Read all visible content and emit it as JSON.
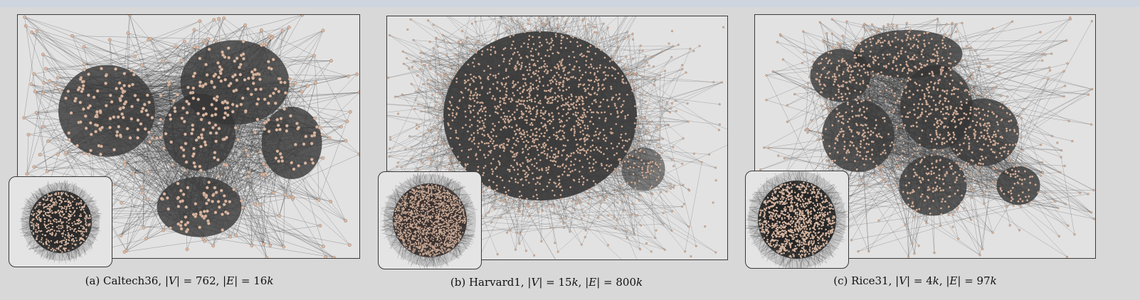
{
  "panels": [
    {
      "id": "a",
      "caption": "(a) Caltech36, |V| = 762, |E| = 16k",
      "caption_parts": {
        "prefix": "(a) Caltech36, |",
        "v": "V",
        "mid1": "| = 762, |",
        "e": "E",
        "mid2": "| = 16",
        "k": "k"
      }
    },
    {
      "id": "b",
      "caption": "(b) Harvard1, |V| = 15k, |E| = 800k",
      "caption_parts": {
        "prefix": "(b) Harvard1, |",
        "v": "V",
        "mid1": "| = 15",
        "k1": "k",
        "mid2": ", |",
        "e": "E",
        "mid3": "| = 800",
        "k2": "k"
      }
    },
    {
      "id": "c",
      "caption": "(c) Rice31, |V| = 4k, |E| = 97k",
      "caption_parts": {
        "prefix": "(c) Rice31, |",
        "v": "V",
        "mid1": "| = 4",
        "k1": "k",
        "mid2": ", |",
        "e": "E",
        "mid3": "| = 97",
        "k2": "k"
      }
    }
  ],
  "colors": {
    "node": "#d9b8a3",
    "edge": "#3c3c3c",
    "background": "#e2e2e2",
    "cluster": "#2b2b2b"
  }
}
